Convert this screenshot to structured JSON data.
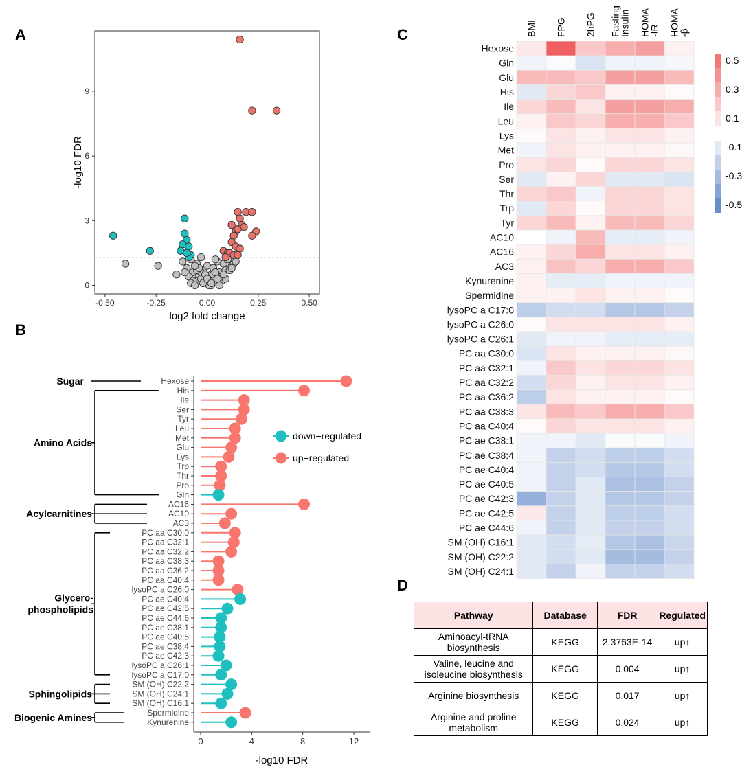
{
  "panel_letters": {
    "a": "A",
    "b": "B",
    "c": "C",
    "d": "D"
  },
  "chart_data": [
    {
      "id": "A",
      "type": "scatter",
      "title": "",
      "xlabel": "log2 fold change",
      "ylabel": "-log10 FDR",
      "xlim": [
        -0.55,
        0.55
      ],
      "ylim": [
        -0.4,
        11.8
      ],
      "xticks": [
        -0.5,
        -0.25,
        0,
        0.25,
        0.5
      ],
      "xtick_labels": [
        "-0.50",
        "-0.25",
        "0.00",
        "0.25",
        "0.50"
      ],
      "yticks": [
        0,
        3,
        6,
        9
      ],
      "ytick_labels": [
        "0",
        "3",
        "6",
        "9"
      ],
      "hline": 1.3,
      "vline": 0,
      "colors": {
        "up": "#e8736a",
        "down": "#1fbfbf",
        "ns": "#c0c0c0"
      },
      "series": [
        {
          "name": "up",
          "x": [
            0.16,
            0.22,
            0.34,
            0.15,
            0.19,
            0.22,
            0.16,
            0.17,
            0.12,
            0.18,
            0.14,
            0.13,
            0.15,
            0.24,
            0.22,
            0.12,
            0.14,
            0.16,
            0.08,
            0.1,
            0.11,
            0.13,
            0.15,
            0.09
          ],
          "y": [
            11.4,
            8.1,
            8.1,
            3.4,
            3.4,
            3.4,
            3.1,
            2.8,
            2.8,
            2.7,
            2.5,
            2.3,
            2.6,
            2.5,
            2.3,
            2.0,
            1.8,
            1.7,
            1.6,
            1.5,
            1.5,
            1.4,
            1.4,
            1.3
          ]
        },
        {
          "name": "down",
          "x": [
            -0.46,
            -0.11,
            -0.11,
            -0.1,
            -0.12,
            -0.09,
            -0.28,
            -0.13,
            -0.1,
            -0.08,
            -0.09,
            -0.1
          ],
          "y": [
            2.3,
            3.1,
            2.4,
            2.1,
            1.9,
            1.8,
            1.6,
            1.6,
            1.5,
            1.4,
            1.3,
            1.5
          ]
        },
        {
          "name": "ns",
          "x": [
            -0.4,
            -0.24,
            -0.15,
            -0.12,
            -0.1,
            -0.08,
            -0.07,
            -0.05,
            -0.04,
            -0.03,
            -0.02,
            0.0,
            0.02,
            0.03,
            0.05,
            0.06,
            0.08,
            0.09,
            0.1,
            0.12,
            0.13,
            0.14,
            -0.06,
            -0.05,
            -0.04,
            -0.02,
            -0.01,
            0.01,
            0.02,
            0.04,
            0.05,
            0.06,
            0.07,
            -0.09,
            -0.07,
            -0.03,
            0.0,
            0.03,
            0.07,
            0.09,
            0.11,
            -0.08,
            -0.06,
            -0.05,
            -0.03,
            -0.01,
            0.01,
            0.03,
            0.04,
            0.06,
            -0.02,
            0.0,
            0.02,
            -0.04,
            0.05,
            0.08,
            -0.11,
            0.12,
            -0.06,
            0.04
          ],
          "y": [
            1.0,
            0.9,
            0.5,
            1.1,
            0.8,
            1.2,
            0.6,
            1.0,
            0.4,
            1.3,
            0.7,
            0.9,
            0.5,
            0.8,
            1.1,
            0.6,
            1.0,
            0.7,
            1.2,
            0.9,
            1.0,
            1.1,
            0.3,
            0.2,
            0.5,
            0.1,
            0.3,
            0.2,
            0.0,
            0.3,
            0.1,
            0.4,
            0.2,
            0.4,
            0.2,
            0.6,
            0.1,
            0.5,
            0.4,
            0.3,
            0.7,
            0.1,
            0.0,
            0.7,
            0.3,
            0.5,
            0.0,
            0.2,
            0.6,
            0.0,
            0.1,
            0.3,
            0.1,
            0.8,
            0.3,
            0.5,
            0.6,
            0.8,
            0.9,
            1.2
          ]
        }
      ]
    },
    {
      "id": "B",
      "type": "lollipop",
      "xlabel": "-log10 FDR",
      "xlim": [
        0,
        13
      ],
      "xticks": [
        0,
        4,
        8,
        12
      ],
      "xtick_labels": [
        "0",
        "4",
        "8",
        "12"
      ],
      "legend": [
        {
          "label": "down−regulated",
          "color": "#1fbfbf"
        },
        {
          "label": "up−regulated",
          "color": "#f8766d"
        }
      ],
      "items": [
        {
          "label": "Hexose",
          "value": 11.4,
          "dir": "up"
        },
        {
          "label": "His",
          "value": 8.1,
          "dir": "up"
        },
        {
          "label": "Ile",
          "value": 3.4,
          "dir": "up"
        },
        {
          "label": "Ser",
          "value": 3.4,
          "dir": "up"
        },
        {
          "label": "Tyr",
          "value": 3.2,
          "dir": "up"
        },
        {
          "label": "Leu",
          "value": 2.7,
          "dir": "up"
        },
        {
          "label": "Met",
          "value": 2.7,
          "dir": "up"
        },
        {
          "label": "Glu",
          "value": 2.4,
          "dir": "up"
        },
        {
          "label": "Lys",
          "value": 2.2,
          "dir": "up"
        },
        {
          "label": "Trp",
          "value": 1.6,
          "dir": "up"
        },
        {
          "label": "Thr",
          "value": 1.6,
          "dir": "up"
        },
        {
          "label": "Pro",
          "value": 1.5,
          "dir": "up"
        },
        {
          "label": "Gln",
          "value": 1.4,
          "dir": "down"
        },
        {
          "label": "AC16",
          "value": 8.1,
          "dir": "up"
        },
        {
          "label": "AC10",
          "value": 2.4,
          "dir": "up"
        },
        {
          "label": "AC3",
          "value": 1.9,
          "dir": "up"
        },
        {
          "label": "PC aa C30:0",
          "value": 2.7,
          "dir": "up"
        },
        {
          "label": "PC aa C32:1",
          "value": 2.6,
          "dir": "up"
        },
        {
          "label": "PC aa C32:2",
          "value": 2.4,
          "dir": "up"
        },
        {
          "label": "PC aa C38:3",
          "value": 1.4,
          "dir": "up"
        },
        {
          "label": "PC aa C36:2",
          "value": 1.4,
          "dir": "up"
        },
        {
          "label": "PC aa C40:4",
          "value": 1.4,
          "dir": "up"
        },
        {
          "label": "lysoPC a C26:0",
          "value": 2.9,
          "dir": "up"
        },
        {
          "label": "PC ae C40:4",
          "value": 3.1,
          "dir": "down"
        },
        {
          "label": "PC ae C42:5",
          "value": 2.1,
          "dir": "down"
        },
        {
          "label": "PC ae C44:6",
          "value": 1.6,
          "dir": "down"
        },
        {
          "label": "PC ae C38:1",
          "value": 1.6,
          "dir": "down"
        },
        {
          "label": "PC ae C40:5",
          "value": 1.5,
          "dir": "down"
        },
        {
          "label": "PC ae C38:4",
          "value": 1.5,
          "dir": "down"
        },
        {
          "label": "PC ae C42:3",
          "value": 1.4,
          "dir": "down"
        },
        {
          "label": "lysoPC a C26:1",
          "value": 2.0,
          "dir": "down"
        },
        {
          "label": "lysoPC a C17:0",
          "value": 1.6,
          "dir": "down"
        },
        {
          "label": "SM (OH) C22:2",
          "value": 2.4,
          "dir": "down"
        },
        {
          "label": "SM (OH) C24:1",
          "value": 2.1,
          "dir": "down"
        },
        {
          "label": "SM (OH) C16:1",
          "value": 1.6,
          "dir": "down"
        },
        {
          "label": "Spermidine",
          "value": 3.5,
          "dir": "up"
        },
        {
          "label": "Kynurenine",
          "value": 2.4,
          "dir": "down"
        }
      ],
      "groups": [
        {
          "label": "Sugar",
          "from": 0,
          "to": 0
        },
        {
          "label": "Amino Acids",
          "from": 1,
          "to": 12
        },
        {
          "label": "Acylcarnitines",
          "from": 13,
          "to": 15
        },
        {
          "label": "Glycero-",
          "label2": "phospholipids",
          "from": 16,
          "to": 31
        },
        {
          "label": "Sphingolipids",
          "from": 32,
          "to": 34
        },
        {
          "label": "Biogenic Amines",
          "from": 35,
          "to": 36
        }
      ]
    },
    {
      "id": "C",
      "type": "heatmap",
      "columns": [
        "BMI",
        "FPG",
        "2hPG",
        "Fasting\nInsulin",
        "HOMA\n-IR",
        "HOMA\n-β"
      ],
      "rows": [
        "Hexose",
        "Gln",
        "Glu",
        "His",
        "Ile",
        "Leu",
        "Lys",
        "Met",
        "Pro",
        "Ser",
        "Thr",
        "Trp",
        "Tyr",
        "AC10",
        "AC16",
        "AC3",
        "Kynurenine",
        "Spermidine",
        "lysoPC a C17:0",
        "lysoPC a C26:0",
        "lysoPC a C26:1",
        "PC aa C30:0",
        "PC aa C32:1",
        "PC aa C32:2",
        "PC aa C36:2",
        "PC aa C38:3",
        "PC aa C40:4",
        "PC ae C38:1",
        "PC ae C38:4",
        "PC ae C40:4",
        "PC ae C40:5",
        "PC ae C42:3",
        "PC ae C42:5",
        "PC ae C44:6",
        "SM (OH) C16:1",
        "SM (OH) C22:2",
        "SM (OH) C24:1"
      ],
      "values": [
        [
          0.08,
          0.58,
          0.2,
          0.3,
          0.35,
          0.05
        ],
        [
          -0.05,
          -0.02,
          -0.12,
          -0.05,
          -0.05,
          -0.03
        ],
        [
          0.25,
          0.25,
          0.2,
          0.35,
          0.35,
          0.25
        ],
        [
          -0.1,
          0.15,
          0.2,
          0.05,
          0.05,
          0.02
        ],
        [
          0.15,
          0.25,
          0.1,
          0.35,
          0.35,
          0.3
        ],
        [
          0.05,
          0.2,
          0.15,
          0.3,
          0.3,
          0.2
        ],
        [
          0.02,
          0.1,
          0.05,
          0.1,
          0.1,
          0.05
        ],
        [
          -0.05,
          0.1,
          0.05,
          0.05,
          0.05,
          0.03
        ],
        [
          0.1,
          0.15,
          0.02,
          0.15,
          0.15,
          0.1
        ],
        [
          -0.1,
          0.05,
          0.15,
          -0.1,
          -0.1,
          -0.12
        ],
        [
          0.15,
          0.2,
          -0.05,
          0.15,
          0.15,
          0.1
        ],
        [
          -0.1,
          0.15,
          0.02,
          0.15,
          0.15,
          0.1
        ],
        [
          0.15,
          0.25,
          0.05,
          0.25,
          0.25,
          0.15
        ],
        [
          0.0,
          -0.05,
          0.25,
          -0.08,
          -0.08,
          -0.05
        ],
        [
          0.05,
          0.15,
          0.3,
          0.1,
          0.1,
          0.05
        ],
        [
          0.05,
          0.22,
          0.15,
          0.3,
          0.3,
          0.2
        ],
        [
          0.05,
          -0.08,
          -0.08,
          -0.05,
          -0.05,
          -0.05
        ],
        [
          0.05,
          0.05,
          0.1,
          0.05,
          0.05,
          0.02
        ],
        [
          -0.22,
          -0.15,
          -0.15,
          -0.25,
          -0.25,
          -0.2
        ],
        [
          0.02,
          0.1,
          0.1,
          0.1,
          0.1,
          0.05
        ],
        [
          -0.1,
          -0.05,
          -0.05,
          -0.08,
          -0.08,
          -0.08
        ],
        [
          -0.12,
          0.1,
          0.05,
          0.05,
          0.05,
          0.03
        ],
        [
          -0.05,
          0.2,
          0.1,
          0.15,
          0.15,
          0.1
        ],
        [
          -0.15,
          0.15,
          0.05,
          0.1,
          0.1,
          0.05
        ],
        [
          -0.22,
          0.1,
          0.05,
          0.05,
          0.05,
          0.02
        ],
        [
          0.1,
          0.25,
          0.2,
          0.3,
          0.3,
          0.2
        ],
        [
          0.02,
          0.15,
          0.1,
          0.1,
          0.1,
          0.05
        ],
        [
          -0.05,
          -0.05,
          -0.1,
          -0.02,
          -0.02,
          -0.05
        ],
        [
          -0.05,
          -0.2,
          -0.15,
          -0.22,
          -0.22,
          -0.15
        ],
        [
          -0.05,
          -0.2,
          -0.15,
          -0.25,
          -0.25,
          -0.15
        ],
        [
          -0.05,
          -0.2,
          -0.1,
          -0.28,
          -0.28,
          -0.2
        ],
        [
          -0.35,
          -0.2,
          -0.1,
          -0.25,
          -0.25,
          -0.2
        ],
        [
          0.08,
          -0.2,
          -0.1,
          -0.22,
          -0.22,
          -0.15
        ],
        [
          -0.05,
          -0.2,
          -0.1,
          -0.2,
          -0.2,
          -0.15
        ],
        [
          -0.1,
          -0.15,
          -0.08,
          -0.25,
          -0.28,
          -0.18
        ],
        [
          -0.1,
          -0.15,
          -0.1,
          -0.3,
          -0.3,
          -0.2
        ],
        [
          -0.1,
          -0.2,
          -0.05,
          -0.2,
          -0.2,
          -0.15
        ]
      ],
      "scale_ticks": [
        0.5,
        0.3,
        0.1,
        -0.1,
        -0.3,
        -0.5
      ],
      "scale_tick_labels": [
        "0.5",
        "0.3",
        "0.1",
        "-0.1",
        "-0.3",
        "-0.5"
      ],
      "colors": {
        "neg": "#4a78c0",
        "pos": "#f05a5a",
        "mid": "#ffffff"
      }
    }
  ],
  "table": {
    "headers": [
      "Pathway",
      "Database",
      "FDR",
      "Regulated"
    ],
    "rows": [
      {
        "pathway": "Aminoacyl-tRNA biosynthesis",
        "database": "KEGG",
        "fdr": "2.3763E-14",
        "regulated": "up↑"
      },
      {
        "pathway": "Valine, leucine and isoleucine biosynthesis",
        "database": "KEGG",
        "fdr": "0.004",
        "regulated": "up↑"
      },
      {
        "pathway": "Arginine biosynthesis",
        "database": "KEGG",
        "fdr": "0.017",
        "regulated": "up↑"
      },
      {
        "pathway": "Arginine and proline metabolism",
        "database": "KEGG",
        "fdr": "0.024",
        "regulated": "up↑"
      }
    ]
  }
}
